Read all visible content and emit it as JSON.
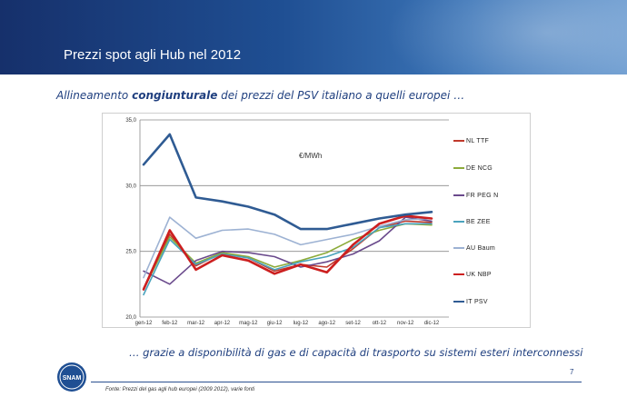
{
  "header": {
    "title": "Prezzi spot agli Hub nel 2012"
  },
  "subtitle": {
    "part1": "Allineamento ",
    "bold": "congiunturale",
    "part2": " dei prezzi del PSV italiano a quelli europei …"
  },
  "chart_data": {
    "type": "line",
    "unit_label": "€/MWh",
    "categories": [
      "gen-12",
      "feb-12",
      "mar-12",
      "apr-12",
      "mag-12",
      "giu-12",
      "lug-12",
      "ago-12",
      "set-12",
      "ott-12",
      "nov-12",
      "dic-12"
    ],
    "ylim": [
      20,
      35
    ],
    "yticks": [
      "20,0",
      "25,0",
      "30,0",
      "35,0"
    ],
    "grid": "horizontal",
    "legend_position": "right",
    "series": [
      {
        "name": "NL TTF",
        "color": "#c0392b",
        "values": [
          22.2,
          26.3,
          23.9,
          24.9,
          24.5,
          23.5,
          24.0,
          23.8,
          25.2,
          26.8,
          27.3,
          27.2
        ]
      },
      {
        "name": "DE NCG",
        "color": "#8cab3b",
        "values": [
          22.1,
          26.1,
          24.1,
          24.9,
          24.6,
          23.8,
          24.3,
          24.9,
          25.9,
          26.6,
          27.1,
          27.0
        ]
      },
      {
        "name": "FR PEG N",
        "color": "#6a4a8c",
        "values": [
          23.5,
          22.5,
          24.3,
          25.0,
          24.9,
          24.6,
          23.8,
          24.2,
          24.8,
          25.8,
          27.6,
          27.3
        ]
      },
      {
        "name": "BE ZEE",
        "color": "#4aa3bd",
        "values": [
          21.7,
          25.9,
          24.0,
          24.8,
          24.5,
          23.6,
          24.2,
          24.6,
          25.3,
          26.8,
          27.1,
          27.1
        ]
      },
      {
        "name": "AU Baum",
        "color": "#9db2d3",
        "values": [
          23.0,
          27.6,
          26.0,
          26.6,
          26.7,
          26.3,
          25.5,
          25.9,
          26.3,
          26.9,
          27.4,
          27.5
        ]
      },
      {
        "name": "UK NBP",
        "color": "#cc1f1f",
        "values": [
          22.1,
          26.6,
          23.6,
          24.7,
          24.3,
          23.3,
          24.0,
          23.4,
          25.5,
          27.1,
          27.7,
          27.5
        ]
      },
      {
        "name": "IT PSV",
        "color": "#2f5b93",
        "values": [
          31.6,
          33.9,
          29.1,
          28.8,
          28.4,
          27.8,
          26.7,
          26.7,
          27.1,
          27.5,
          27.8,
          28.0
        ]
      }
    ]
  },
  "footer": {
    "quote": "… grazie a disponibilità di gas e di capacità di trasporto su sistemi esteri interconnessi",
    "page": "7",
    "source": "Fonte: Prezzi del gas agli hub europei (2009 2012), varie fonti",
    "logo_text": "SNAM"
  }
}
